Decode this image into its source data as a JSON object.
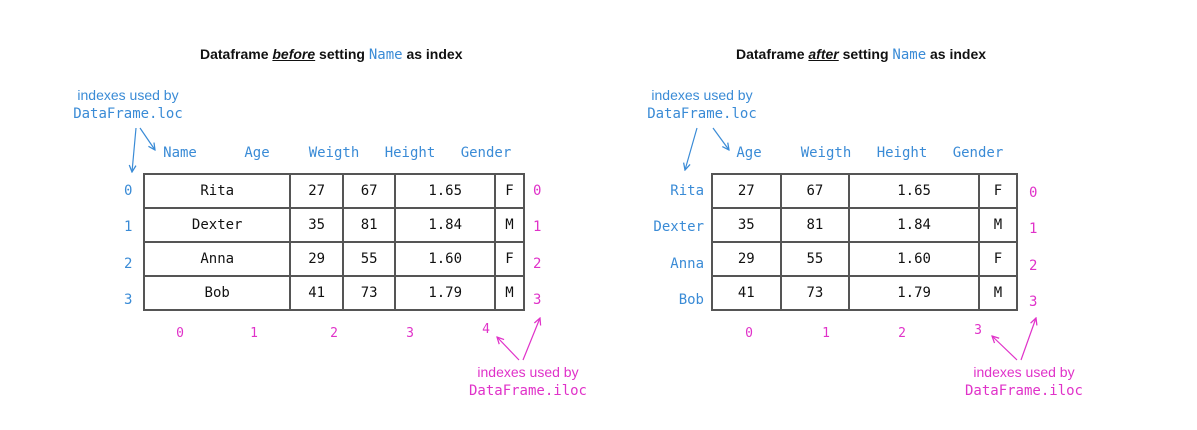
{
  "left": {
    "title_prefix": "Dataframe ",
    "title_em": "before",
    "title_mid": " setting ",
    "title_code": "Name",
    "title_suffix": " as index",
    "loc_note": [
      "indexes used by",
      "DataFrame.loc"
    ],
    "iloc_note": [
      "indexes used by",
      "DataFrame.iloc"
    ],
    "headers": [
      "Name",
      "Age",
      "Weigth",
      "Height",
      "Gender"
    ],
    "row_labels": [
      "0",
      "1",
      "2",
      "3"
    ],
    "row_positions": [
      "0",
      "1",
      "2",
      "3"
    ],
    "col_positions": [
      "0",
      "1",
      "2",
      "3",
      "4"
    ],
    "rows": [
      [
        "Rita",
        "27",
        "67",
        "1.65",
        "F"
      ],
      [
        "Dexter",
        "35",
        "81",
        "1.84",
        "M"
      ],
      [
        "Anna",
        "29",
        "55",
        "1.60",
        "F"
      ],
      [
        "Bob",
        "41",
        "73",
        "1.79",
        "M"
      ]
    ]
  },
  "right": {
    "title_prefix": "Dataframe ",
    "title_em": "after",
    "title_mid": " setting ",
    "title_code": "Name",
    "title_suffix": " as index",
    "loc_note": [
      "indexes used by",
      "DataFrame.loc"
    ],
    "iloc_note": [
      "indexes used by",
      "DataFrame.iloc"
    ],
    "headers": [
      "Age",
      "Weigth",
      "Height",
      "Gender"
    ],
    "row_labels": [
      "Rita",
      "Dexter",
      "Anna",
      "Bob"
    ],
    "row_positions": [
      "0",
      "1",
      "2",
      "3"
    ],
    "col_positions": [
      "0",
      "1",
      "2",
      "3"
    ],
    "rows": [
      [
        "27",
        "67",
        "1.65",
        "F"
      ],
      [
        "35",
        "81",
        "1.84",
        "M"
      ],
      [
        "29",
        "55",
        "1.60",
        "F"
      ],
      [
        "41",
        "73",
        "1.79",
        "M"
      ]
    ]
  },
  "colors": {
    "loc": "#3a8bd6",
    "iloc": "#e032c9",
    "border": "#555555"
  }
}
